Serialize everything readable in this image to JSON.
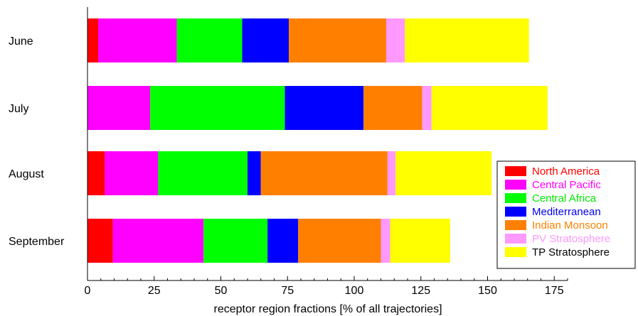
{
  "chart_data": {
    "type": "bar",
    "orientation": "horizontal",
    "stacked": true,
    "categories": [
      "June",
      "July",
      "August",
      "September"
    ],
    "series": [
      {
        "name": "North America",
        "color": "#ff0000",
        "text_color": "#ff0000",
        "values": [
          4,
          0,
          6.5,
          9.5
        ]
      },
      {
        "name": "Central Pacific",
        "color": "#ff00ff",
        "text_color": "#ff00ff",
        "values": [
          29.5,
          23.5,
          20,
          34
        ]
      },
      {
        "name": "Central Africa",
        "color": "#00ff00",
        "text_color": "#00ee00",
        "values": [
          24.5,
          50.5,
          33.5,
          24
        ]
      },
      {
        "name": "Mediterranean",
        "color": "#0000ff",
        "text_color": "#0000ee",
        "values": [
          17.5,
          29.5,
          5,
          11.5
        ]
      },
      {
        "name": "Indian Monsoon",
        "color": "#ff8000",
        "text_color": "#ff8000",
        "values": [
          36.5,
          22,
          47.5,
          31
        ]
      },
      {
        "name": "PV Stratosphere",
        "color": "#ff99ff",
        "text_color": "#ff99ff",
        "values": [
          7,
          3.5,
          3,
          3.5
        ]
      },
      {
        "name": "TP Stratosphere",
        "color": "#ffff00",
        "text_color": "#000000",
        "values": [
          46.5,
          43.5,
          36,
          22.5
        ]
      }
    ],
    "xlabel": "receptor region fractions [% of all trajectories]",
    "xlim": [
      0,
      180
    ],
    "xticks": [
      0,
      25,
      50,
      75,
      100,
      125,
      150,
      175
    ],
    "grid": false,
    "legend_position": "bottom-right"
  }
}
